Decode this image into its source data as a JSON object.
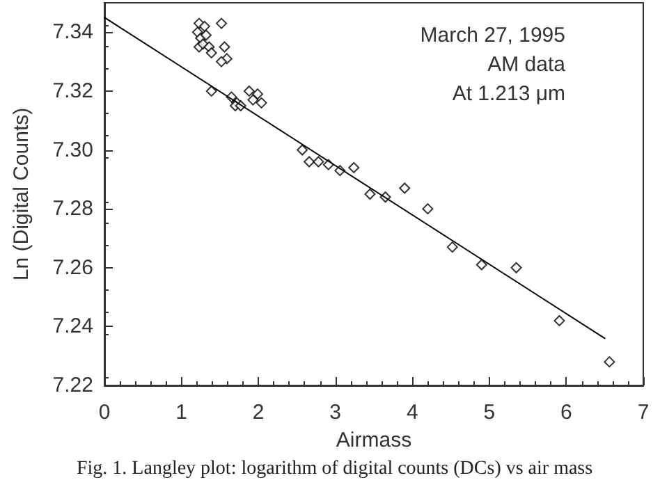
{
  "chart_data": {
    "type": "scatter",
    "xlabel": "Airmass",
    "ylabel": "Ln (Digital Counts)",
    "annotations": [
      "March 27, 1995",
      "AM data",
      "At 1.213 μm",
      "Fig. 1. Langley plot: logarithm of digital counts (DCs) vs air mass"
    ],
    "xlim": [
      0,
      7
    ],
    "xticks": [
      0,
      1,
      2,
      3,
      4,
      5,
      6,
      7
    ],
    "ylim": [
      7.22,
      7.35
    ],
    "yticks": [
      7.22,
      7.24,
      7.26,
      7.28,
      {
        "value": 7.3,
        "label": "7.30"
      },
      7.32,
      7.34
    ],
    "grid": false,
    "series": [
      {
        "type": "scatter",
        "color": "#000000",
        "marker": "diamond",
        "x": [
          1.23,
          1.3,
          1.52,
          1.21,
          1.25,
          1.32,
          1.23,
          1.28,
          1.36,
          1.56,
          1.59,
          1.52,
          1.39,
          1.39,
          1.65,
          1.72,
          1.7,
          1.77,
          1.88,
          1.99,
          2.04,
          1.93,
          2.57,
          2.66,
          2.78,
          2.91,
          3.06,
          3.24,
          3.45,
          3.65,
          3.9,
          4.2,
          4.52,
          4.9,
          5.35,
          5.91,
          6.56
        ],
        "values": [
          7.343,
          7.342,
          7.343,
          7.34,
          7.338,
          7.339,
          7.335,
          7.336,
          7.335,
          7.335,
          7.331,
          7.33,
          7.333,
          7.32,
          7.318,
          7.316,
          7.315,
          7.315,
          7.32,
          7.319,
          7.316,
          7.317,
          7.3,
          7.296,
          7.296,
          7.295,
          7.293,
          7.294,
          7.285,
          7.284,
          7.287,
          7.28,
          7.267,
          7.261,
          7.26,
          7.242,
          7.228
        ]
      },
      {
        "type": "line",
        "color": "#000000",
        "marker": "none",
        "x": [
          0,
          6.5
        ],
        "values": [
          7.345,
          7.236
        ]
      }
    ]
  }
}
